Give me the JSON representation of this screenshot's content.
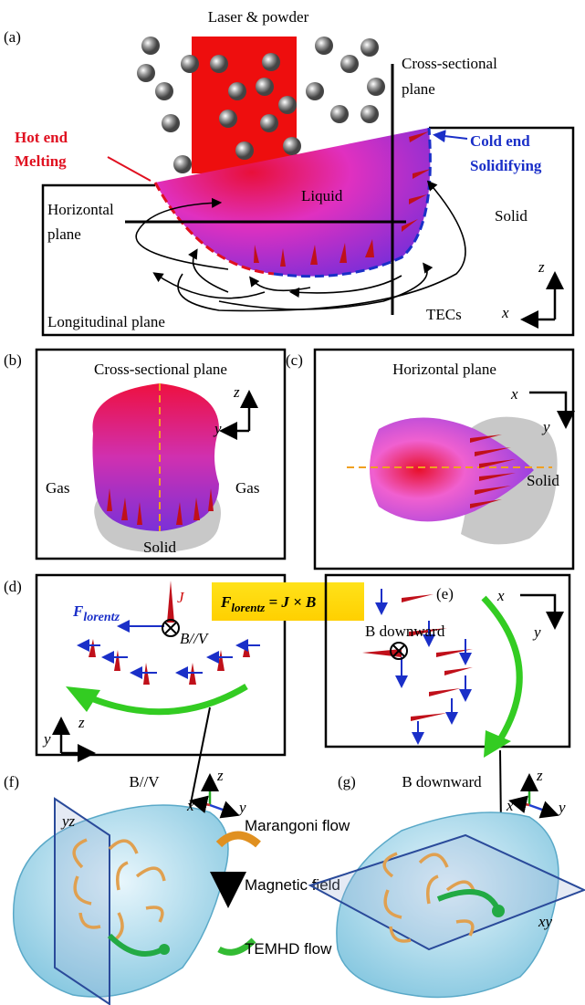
{
  "panels": {
    "a": {
      "label": "(a)",
      "beam": "Laser & powder",
      "cross": [
        "Cross-sectional",
        "plane"
      ],
      "hot": [
        "Hot end",
        "Melting"
      ],
      "cold": [
        "Cold end",
        "Solidifying"
      ],
      "liquid": "Liquid",
      "solid": "Solid",
      "horizontal": [
        "Horizontal",
        "plane"
      ],
      "longitudinal": "Longitudinal plane",
      "tecs": "TECs",
      "axis_z": "z",
      "axis_x": "x"
    },
    "b": {
      "label": "(b)",
      "title": "Cross-sectional plane",
      "gas_left": "Gas",
      "gas_right": "Gas",
      "solid": "Solid",
      "axis_z": "z",
      "axis_y": "y"
    },
    "c": {
      "label": "(c)",
      "title": "Horizontal plane",
      "solid": "Solid",
      "axis_x": "x",
      "axis_y": "y"
    },
    "d": {
      "label": "(d)",
      "force": "F",
      "force_sub": "lorentz",
      "current": "J",
      "field": "B//V",
      "axis_z": "z",
      "axis_y": "y"
    },
    "formula": {
      "lhs": "F",
      "lhs_sub": "lorentz",
      "rhs": " = J × B"
    },
    "e": {
      "label": "(e)",
      "axis_x": "x",
      "axis_y": "y",
      "field": "B downward"
    },
    "f": {
      "label": "(f)",
      "title": "B//V",
      "plane": "yz",
      "axis_x": "x",
      "axis_y": "y",
      "axis_z": "z"
    },
    "g": {
      "label": "(g)",
      "title": "B downward",
      "plane": "xy",
      "axis_x": "x",
      "axis_y": "y",
      "axis_z": "z"
    },
    "legend": {
      "marangoni": "Marangoni flow",
      "magnetic": "Magnetic field",
      "temhd": "TEMHD flow"
    }
  }
}
